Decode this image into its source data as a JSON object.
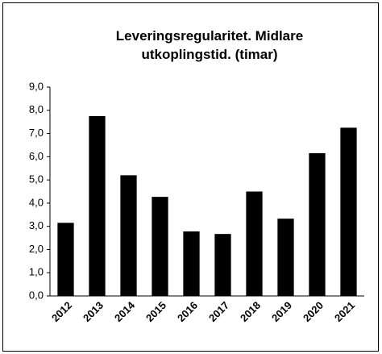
{
  "chart_data": {
    "type": "bar",
    "title": "Leveringsregularitet. Midlare utkoplingstid. (timar)",
    "categories": [
      "2012",
      "2013",
      "2014",
      "2015",
      "2016",
      "2017",
      "2018",
      "2019",
      "2020",
      "2021"
    ],
    "values": [
      3.15,
      7.75,
      5.2,
      4.27,
      2.78,
      2.67,
      4.5,
      3.33,
      6.15,
      7.25
    ],
    "color": "#000000",
    "ylim": [
      0,
      9
    ],
    "yticks": [
      {
        "value": 0,
        "label": "0,0"
      },
      {
        "value": 1,
        "label": "1,0"
      },
      {
        "value": 2,
        "label": "2,0"
      },
      {
        "value": 3,
        "label": "3,0"
      },
      {
        "value": 4,
        "label": "4,0"
      },
      {
        "value": 5,
        "label": "5,0"
      },
      {
        "value": 6,
        "label": "6,0"
      },
      {
        "value": 7,
        "label": "7,0"
      },
      {
        "value": 8,
        "label": "8,0"
      },
      {
        "value": 9,
        "label": "9,0"
      }
    ],
    "grid": false
  }
}
